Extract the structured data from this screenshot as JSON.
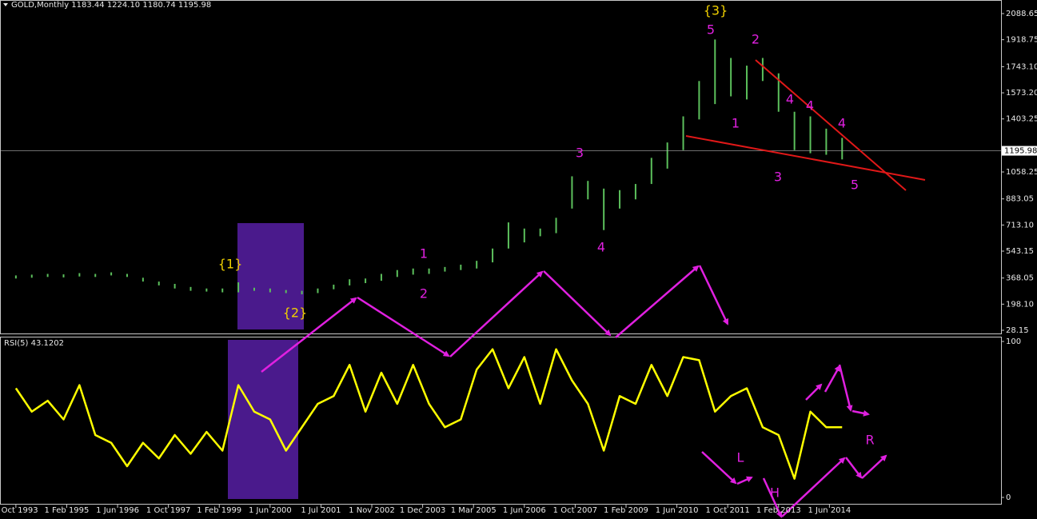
{
  "chart_data": [
    {
      "type": "ohlc",
      "title": "GOLD,Monthly 1183.44 1224.10 1180.74 1195.98",
      "color": "#5cc05c",
      "x": [
        0,
        5,
        10,
        15,
        20,
        25,
        30,
        35,
        40,
        45,
        50,
        55,
        60,
        65,
        70,
        75,
        80,
        85,
        90,
        95,
        100,
        105,
        110,
        115,
        120,
        125,
        130,
        135,
        140,
        145,
        150,
        155,
        160,
        165,
        170,
        175,
        180,
        185,
        190,
        195,
        200,
        205,
        210,
        215,
        220,
        225,
        230,
        235,
        240,
        245,
        250,
        255,
        260
      ],
      "high": [
        385,
        390,
        395,
        392,
        400,
        395,
        405,
        395,
        370,
        345,
        330,
        310,
        300,
        300,
        340,
        305,
        300,
        290,
        285,
        300,
        325,
        360,
        365,
        395,
        420,
        430,
        430,
        440,
        455,
        480,
        560,
        730,
        690,
        690,
        760,
        1030,
        1000,
        950,
        940,
        980,
        1150,
        1250,
        1420,
        1650,
        1920,
        1800,
        1750,
        1800,
        1700,
        1450,
        1420,
        1340,
        1280
      ],
      "low": [
        365,
        370,
        375,
        372,
        378,
        375,
        385,
        375,
        345,
        320,
        300,
        285,
        280,
        275,
        275,
        285,
        275,
        270,
        262,
        270,
        295,
        320,
        335,
        350,
        375,
        390,
        395,
        410,
        420,
        430,
        470,
        560,
        600,
        640,
        660,
        820,
        880,
        680,
        820,
        880,
        980,
        1080,
        1200,
        1400,
        1500,
        1550,
        1530,
        1650,
        1450,
        1200,
        1180,
        1170,
        1140
      ],
      "last_price": 1195.98,
      "xlim": [
        -5,
        310
      ],
      "ylim": [
        7.3,
        2166.7
      ],
      "yticks": [
        2088.65,
        1918.75,
        {
          "value": 1743.1,
          "label": "1743.10"
        },
        {
          "value": 1573.2,
          "label": "1573.20"
        },
        1403.25,
        1058.25,
        883.05,
        {
          "value": 713.1,
          "label": "713.10"
        },
        543.15,
        368.05,
        {
          "value": 198.1,
          "label": "198.10"
        },
        28.15
      ],
      "annotations": [
        "{3}",
        "5",
        "2",
        "4",
        "4",
        "1",
        "4",
        "3",
        "3",
        "5",
        "4",
        "1",
        "2",
        "{1}",
        "{2}"
      ]
    },
    {
      "type": "line",
      "x": [
        0,
        5,
        10,
        15,
        20,
        25,
        30,
        35,
        40,
        45,
        50,
        55,
        60,
        65,
        70,
        75,
        80,
        85,
        90,
        95,
        100,
        105,
        110,
        115,
        120,
        125,
        130,
        135,
        140,
        145,
        150,
        155,
        160,
        165,
        170,
        175,
        180,
        185,
        190,
        195,
        200,
        205,
        210,
        215,
        220,
        225,
        230,
        235,
        240,
        245,
        250,
        255,
        260
      ],
      "series": [
        {
          "name": "RSI(5) 43.1202",
          "color": "#ffff00",
          "values": [
            70,
            55,
            62,
            50,
            72,
            40,
            35,
            20,
            35,
            25,
            40,
            28,
            42,
            30,
            72,
            55,
            50,
            30,
            45,
            60,
            65,
            85,
            55,
            80,
            60,
            85,
            60,
            45,
            50,
            82,
            95,
            70,
            90,
            60,
            95,
            75,
            60,
            30,
            65,
            60,
            85,
            65,
            90,
            88,
            55,
            65,
            70,
            45,
            40,
            12,
            55,
            45,
            45
          ]
        }
      ],
      "xlim": [
        -5,
        310
      ],
      "ylim": [
        0,
        100
      ],
      "yticks": [
        100,
        0
      ],
      "xticks": [
        {
          "value": 0,
          "label": "1 Oct 1993"
        },
        {
          "value": 16,
          "label": "1 Feb 1995"
        },
        {
          "value": 32,
          "label": "1 Jun 1996"
        },
        {
          "value": 48,
          "label": "1 Oct 1997"
        },
        {
          "value": 64,
          "label": "1 Feb 1999"
        },
        {
          "value": 80,
          "label": "1 Jun 2000"
        },
        {
          "value": 96,
          "label": "1 Jul 2001"
        },
        {
          "value": 112,
          "label": "1 Nov 2002"
        },
        {
          "value": 128,
          "label": "1 Dec 2003"
        },
        {
          "value": 144,
          "label": "1 Mar 2005"
        },
        {
          "value": 160,
          "label": "1 Jun 2006"
        },
        {
          "value": 176,
          "label": "1 Oct 2007"
        },
        {
          "value": 192,
          "label": "1 Feb 2009"
        },
        {
          "value": 208,
          "label": "1 Jun 2010"
        },
        {
          "value": 224,
          "label": "1 Oct 2011"
        },
        {
          "value": 240,
          "label": "1 Feb 2013"
        },
        {
          "value": 256,
          "label": "1 Jun 2014"
        }
      ],
      "annotations": [
        "L",
        "H",
        "R"
      ]
    }
  ]
}
